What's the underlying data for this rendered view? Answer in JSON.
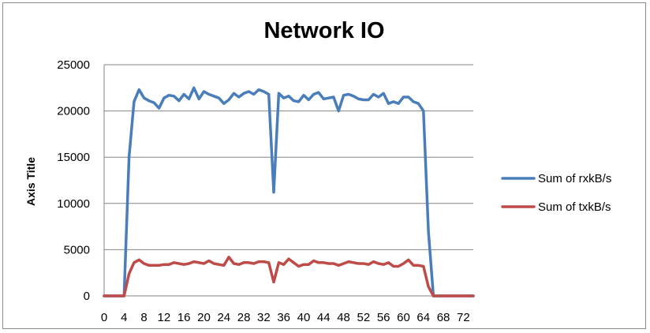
{
  "chart_data": {
    "type": "line",
    "title": "Network IO",
    "xlabel": "",
    "ylabel": "Axis Title",
    "xlim": [
      0,
      74
    ],
    "ylim": [
      0,
      25000
    ],
    "x_ticks": [
      "0",
      "4",
      "8",
      "12",
      "16",
      "20",
      "24",
      "28",
      "32",
      "36",
      "40",
      "44",
      "48",
      "52",
      "56",
      "60",
      "64",
      "68",
      "72"
    ],
    "y_ticks": [
      "0",
      "5000",
      "10000",
      "15000",
      "20000",
      "25000"
    ],
    "grid": "horizontal",
    "legend_position": "right",
    "x": [
      0,
      1,
      2,
      3,
      4,
      5,
      6,
      7,
      8,
      9,
      10,
      11,
      12,
      13,
      14,
      15,
      16,
      17,
      18,
      19,
      20,
      21,
      22,
      23,
      24,
      25,
      26,
      27,
      28,
      29,
      30,
      31,
      32,
      33,
      34,
      35,
      36,
      37,
      38,
      39,
      40,
      41,
      42,
      43,
      44,
      45,
      46,
      47,
      48,
      49,
      50,
      51,
      52,
      53,
      54,
      55,
      56,
      57,
      58,
      59,
      60,
      61,
      62,
      63,
      64,
      65,
      66,
      67,
      68,
      69,
      70,
      71,
      72,
      73,
      74
    ],
    "series": [
      {
        "name": "Sum of rxkB/s",
        "color": "#4a7ebb",
        "values": [
          0,
          0,
          0,
          0,
          0,
          15000,
          21000,
          22300,
          21400,
          21100,
          20900,
          20300,
          21400,
          21700,
          21600,
          21100,
          21800,
          21300,
          22500,
          21300,
          22100,
          21800,
          21600,
          21400,
          20800,
          21200,
          21900,
          21500,
          21900,
          22100,
          21800,
          22300,
          22100,
          21800,
          11200,
          21900,
          21400,
          21600,
          21100,
          21000,
          21700,
          21200,
          21800,
          22000,
          21300,
          21400,
          21500,
          20000,
          21700,
          21800,
          21600,
          21300,
          21200,
          21200,
          21800,
          21500,
          21900,
          20800,
          21000,
          20800,
          21500,
          21500,
          21000,
          20800,
          20000,
          7000,
          0,
          0,
          0,
          0,
          0,
          0,
          0,
          0,
          0
        ]
      },
      {
        "name": "Sum of txkB/s",
        "color": "#be4b48",
        "values": [
          0,
          0,
          0,
          0,
          0,
          2400,
          3600,
          3900,
          3500,
          3300,
          3300,
          3300,
          3400,
          3400,
          3600,
          3500,
          3400,
          3500,
          3700,
          3600,
          3500,
          3800,
          3500,
          3400,
          3300,
          4200,
          3500,
          3400,
          3600,
          3600,
          3500,
          3700,
          3700,
          3600,
          1500,
          3600,
          3400,
          4000,
          3600,
          3200,
          3400,
          3400,
          3800,
          3600,
          3600,
          3500,
          3500,
          3300,
          3500,
          3700,
          3600,
          3500,
          3500,
          3400,
          3700,
          3500,
          3400,
          3600,
          3200,
          3200,
          3500,
          3900,
          3300,
          3300,
          3200,
          1000,
          0,
          0,
          0,
          0,
          0,
          0,
          0,
          0,
          0
        ]
      }
    ]
  }
}
